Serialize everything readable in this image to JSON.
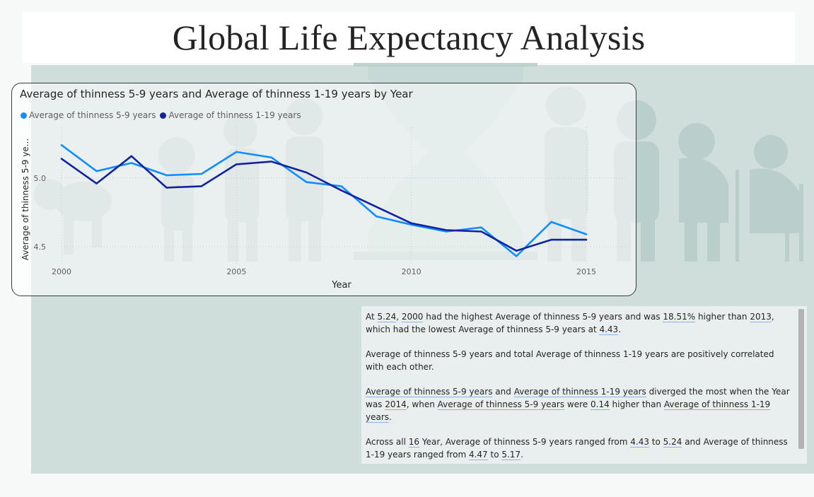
{
  "page": {
    "title": "Global Life Expectancy Analysis"
  },
  "chart": {
    "title": "Average of thinness 5-9 years and Average of thinness 1-19 years by Year",
    "legend": [
      "Average of  thinness 5-9 years",
      "Average of  thinness  1-19 years"
    ],
    "colors": [
      "#118dff",
      "#12239e"
    ]
  },
  "chart_data": {
    "type": "line",
    "title": "Average of thinness 5-9 years and Average of thinness 1-19 years by Year",
    "xlabel": "Year",
    "ylabel": "Average of thinness 5-9 ye...",
    "x": [
      2000,
      2001,
      2002,
      2003,
      2004,
      2005,
      2006,
      2007,
      2008,
      2009,
      2010,
      2011,
      2012,
      2013,
      2014,
      2015
    ],
    "xticks": [
      "2000",
      "2005",
      "2010",
      "2015"
    ],
    "yticks": [
      "5.0",
      "4.5"
    ],
    "ylim": [
      4.36,
      5.37
    ],
    "legend_position": "top-left",
    "grid": true,
    "series": [
      {
        "name": "Average of  thinness 5-9 years",
        "color": "#118dff",
        "values": [
          5.24,
          5.05,
          5.11,
          5.02,
          5.03,
          5.19,
          5.15,
          4.97,
          4.94,
          4.72,
          4.66,
          4.61,
          4.64,
          4.43,
          4.68,
          4.59
        ]
      },
      {
        "name": "Average of  thinness  1-19 years",
        "color": "#12239e",
        "values": [
          5.14,
          4.96,
          5.16,
          4.93,
          4.94,
          5.1,
          5.12,
          5.04,
          4.91,
          4.79,
          4.67,
          4.62,
          4.61,
          4.47,
          4.55,
          4.55
        ]
      }
    ]
  },
  "narrative": {
    "p1": {
      "t1": "At ",
      "v1": "5.24",
      "t2": ", ",
      "v2": "2000",
      "t3": " had the highest Average of  thinness 5-9 years and was ",
      "v3": "18.51%",
      "t4": " higher than ",
      "v4": "2013",
      "t5": ", which had the lowest Average of  thinness 5-9 years at ",
      "v5": "4.43",
      "t6": "."
    },
    "p2": "Average of  thinness 5-9 years and total Average of  thinness  1-19 years are positively correlated with each other.",
    "p3": {
      "v1": "Average of  thinness 5-9 years",
      "t1": " and ",
      "v2": "Average of  thinness  1-19 years",
      "t2": " diverged the most when the Year was ",
      "v3": "2014",
      "t3": ", when ",
      "v4": "Average of  thinness 5-9 years",
      "t4": " were ",
      "v5": "0.14",
      "t5": " higher than ",
      "v6": "Average of  thinness  1-19 years",
      "t6": "."
    },
    "p4": {
      "t1": "Across all ",
      "v1": "16",
      "t2": " Year, Average of  thinness 5-9 years ranged from ",
      "v2": "4.43",
      "t3": " to ",
      "v3": "5.24",
      "t4": " and Average of  thinness  1-19 years ranged from ",
      "v4": "4.47",
      "t5": " to ",
      "v5": "5.17",
      "t6": "."
    }
  }
}
